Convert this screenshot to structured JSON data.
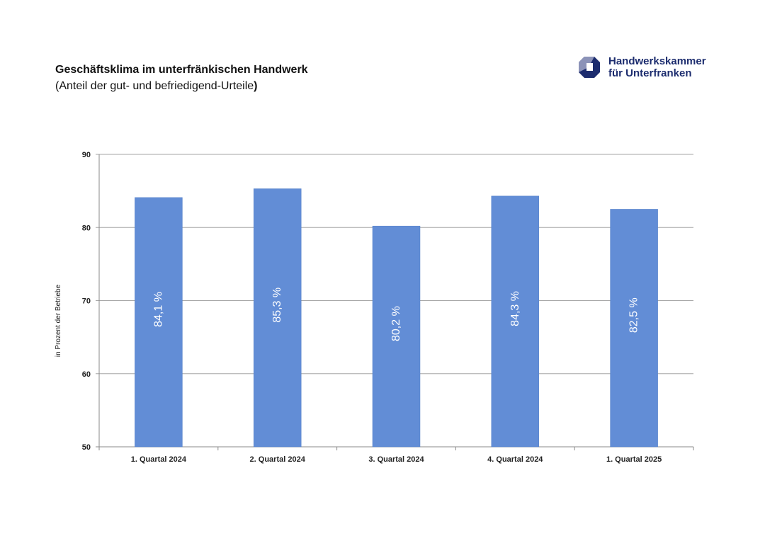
{
  "header": {
    "title": "Geschäftsklima im unterfränkischen Handwerk",
    "subtitle_main": "(Anteil der gut- und befriedigend-Urteile",
    "subtitle_close": ")"
  },
  "logo": {
    "line1": "Handwerkskammer",
    "line2": "für Unterfranken",
    "color_primary": "#1c2c6e",
    "color_secondary": "#8c93b8"
  },
  "chart_data": {
    "type": "bar",
    "categories": [
      "1. Quartal 2024",
      "2. Quartal 2024",
      "3. Quartal 2024",
      "4. Quartal 2024",
      "1. Quartal 2025"
    ],
    "values": [
      84.1,
      85.3,
      80.2,
      84.3,
      82.5
    ],
    "data_labels": [
      "84,1 %",
      "85,3 %",
      "80,2 %",
      "84,3 %",
      "82,5 %"
    ],
    "ylabel": "in Prozent der Betriebe",
    "ylim": [
      50,
      90
    ],
    "yticks": [
      50,
      60,
      70,
      80,
      90
    ],
    "ytick_labels": [
      "50",
      "60",
      "70",
      "80",
      "90"
    ],
    "grid": true,
    "bar_color": "#628dd6",
    "legend": "none"
  }
}
